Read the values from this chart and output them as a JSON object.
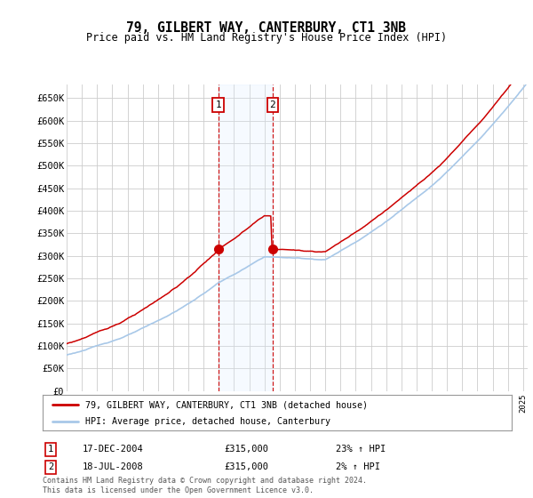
{
  "title": "79, GILBERT WAY, CANTERBURY, CT1 3NB",
  "subtitle": "Price paid vs. HM Land Registry's House Price Index (HPI)",
  "ylabel_ticks": [
    "£0",
    "£50K",
    "£100K",
    "£150K",
    "£200K",
    "£250K",
    "£300K",
    "£350K",
    "£400K",
    "£450K",
    "£500K",
    "£550K",
    "£600K",
    "£650K"
  ],
  "ytick_values": [
    0,
    50000,
    100000,
    150000,
    200000,
    250000,
    300000,
    350000,
    400000,
    450000,
    500000,
    550000,
    600000,
    650000
  ],
  "ylim": [
    0,
    680000
  ],
  "sale1_year": 2004.96,
  "sale1_price": 315000,
  "sale2_year": 2008.54,
  "sale2_price": 315000,
  "transaction1_date": "17-DEC-2004",
  "transaction1_price": "£315,000",
  "transaction1_hpi": "23% ↑ HPI",
  "transaction2_date": "18-JUL-2008",
  "transaction2_price": "£315,000",
  "transaction2_hpi": "2% ↑ HPI",
  "legend_line1": "79, GILBERT WAY, CANTERBURY, CT1 3NB (detached house)",
  "legend_line2": "HPI: Average price, detached house, Canterbury",
  "footer": "Contains HM Land Registry data © Crown copyright and database right 2024.\nThis data is licensed under the Open Government Licence v3.0.",
  "hpi_color": "#a8c8e8",
  "price_color": "#cc0000",
  "shading_color": "#ddeeff",
  "grid_color": "#cccccc",
  "background_color": "#ffffff",
  "xlim_start": 1995,
  "xlim_end": 2025.3
}
